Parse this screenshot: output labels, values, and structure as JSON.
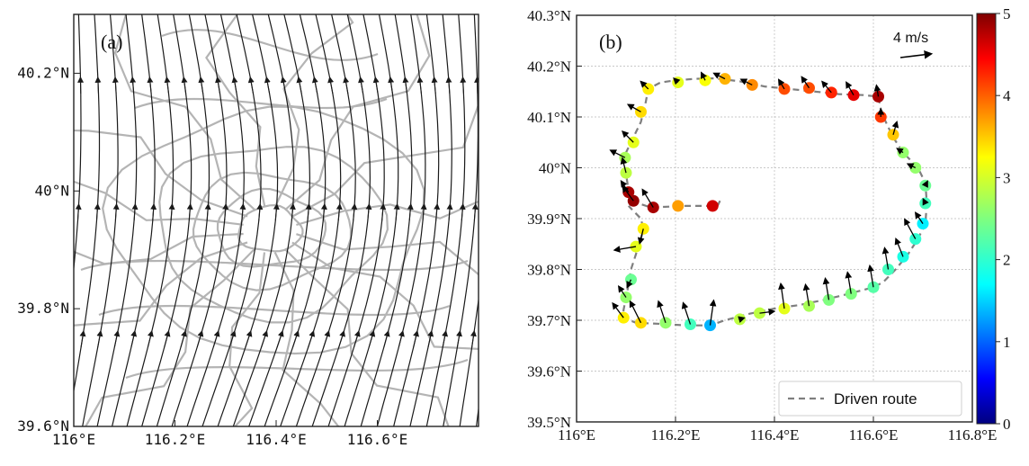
{
  "colors": {
    "streamline": "#1a1a1a",
    "road": "#b4b4b4",
    "route": "#7f7f7f",
    "grid": "#c8c8c8",
    "colormap": [
      "#00007f",
      "#0000ff",
      "#007fff",
      "#00ffff",
      "#7fff7f",
      "#ffff00",
      "#ff7f00",
      "#ff0000",
      "#7f0000"
    ]
  },
  "panel_a": {
    "label": "(a)",
    "xlim": [
      116.0,
      116.8
    ],
    "ylim": [
      39.6,
      40.3
    ],
    "xticks": [
      116.0,
      116.2,
      116.4,
      116.6
    ],
    "yticks": [
      39.6,
      39.8,
      40.0,
      40.2
    ],
    "xtick_labels": [
      "116°E",
      "116.2°E",
      "116.4°E",
      "116.6°E"
    ],
    "ytick_labels": [
      "39.6°N",
      "39.8°N",
      "40°N",
      "40.2°N"
    ],
    "streamline_count": 29
  },
  "chart_data": [
    {
      "type": "streamline",
      "xlim": [
        116.0,
        116.8
      ],
      "ylim": [
        39.6,
        40.3
      ],
      "description_labels": [
        "(a)"
      ]
    },
    {
      "type": "scatter",
      "label": "(b)",
      "xlim": [
        116.0,
        116.8
      ],
      "ylim": [
        39.5,
        40.3
      ],
      "xticks": [
        116.0,
        116.2,
        116.4,
        116.6,
        116.8
      ],
      "yticks": [
        39.5,
        39.6,
        39.7,
        39.8,
        39.9,
        40.0,
        40.1,
        40.2,
        40.3
      ],
      "xtick_labels": [
        "116°E",
        "116.2°E",
        "116.4°E",
        "116.6°E",
        "116.8°E"
      ],
      "ytick_labels": [
        "39.5°N",
        "39.6°N",
        "39.7°N",
        "39.8°N",
        "39.9°N",
        "40°N",
        "40.1°N",
        "40.2°N",
        "40.3°N"
      ],
      "grid": true,
      "legend": {
        "label": "Driven route",
        "placement": "bottom-right"
      },
      "scale_label": "4 m/s",
      "scale_speed": 4,
      "colorbar": {
        "min": 0,
        "max": 5,
        "ticks": [
          0,
          1,
          2,
          3,
          4,
          5
        ],
        "tick_labels": [
          "0",
          "1",
          "2",
          "3",
          "4",
          "5"
        ]
      },
      "route": [
        [
          116.29,
          39.935
        ],
        [
          116.285,
          39.925
        ],
        [
          116.22,
          39.925
        ],
        [
          116.15,
          39.922
        ],
        [
          116.125,
          39.93
        ],
        [
          116.112,
          39.94
        ],
        [
          116.105,
          39.955
        ],
        [
          116.102,
          39.975
        ],
        [
          116.098,
          40.0
        ],
        [
          116.095,
          40.02
        ],
        [
          116.1,
          40.03
        ],
        [
          116.11,
          40.05
        ],
        [
          116.12,
          40.07
        ],
        [
          116.13,
          40.09
        ],
        [
          116.135,
          40.11
        ],
        [
          116.14,
          40.13
        ],
        [
          116.145,
          40.155
        ],
        [
          116.17,
          40.168
        ],
        [
          116.2,
          40.172
        ],
        [
          116.24,
          40.175
        ],
        [
          116.28,
          40.176
        ],
        [
          116.33,
          40.17
        ],
        [
          116.38,
          40.16
        ],
        [
          116.43,
          40.155
        ],
        [
          116.48,
          40.15
        ],
        [
          116.53,
          40.145
        ],
        [
          116.58,
          40.143
        ],
        [
          116.61,
          40.14
        ],
        [
          116.615,
          40.115
        ],
        [
          116.625,
          40.09
        ],
        [
          116.64,
          40.06
        ],
        [
          116.66,
          40.03
        ],
        [
          116.69,
          40.0
        ],
        [
          116.705,
          39.97
        ],
        [
          116.708,
          39.93
        ],
        [
          116.705,
          39.89
        ],
        [
          116.69,
          39.86
        ],
        [
          116.67,
          39.83
        ],
        [
          116.645,
          39.8
        ],
        [
          116.62,
          39.775
        ],
        [
          116.6,
          39.765
        ],
        [
          116.55,
          39.752
        ],
        [
          116.5,
          39.74
        ],
        [
          116.45,
          39.73
        ],
        [
          116.4,
          39.723
        ],
        [
          116.35,
          39.713
        ],
        [
          116.3,
          39.7
        ],
        [
          116.27,
          39.69
        ],
        [
          116.22,
          39.69
        ],
        [
          116.17,
          39.693
        ],
        [
          116.12,
          39.695
        ],
        [
          116.095,
          39.705
        ],
        [
          116.095,
          39.72
        ],
        [
          116.1,
          39.745
        ],
        [
          116.105,
          39.77
        ],
        [
          116.11,
          39.8
        ],
        [
          116.12,
          39.83
        ],
        [
          116.13,
          39.86
        ],
        [
          116.135,
          39.88
        ],
        [
          116.13,
          39.9
        ],
        [
          116.115,
          39.915
        ],
        [
          116.105,
          39.925
        ]
      ],
      "points": [
        {
          "lon": 116.275,
          "lat": 39.925,
          "speed": 4.6,
          "u": 0,
          "v": 0
        },
        {
          "lon": 116.205,
          "lat": 39.925,
          "speed": 3.6,
          "u": 0,
          "v": 0
        },
        {
          "lon": 116.155,
          "lat": 39.922,
          "speed": 4.8,
          "u": -0.3,
          "v": 0.5
        },
        {
          "lon": 116.115,
          "lat": 39.935,
          "speed": 4.9,
          "u": -0.3,
          "v": 0.4
        },
        {
          "lon": 116.105,
          "lat": 39.952,
          "speed": 4.8,
          "u": -0.2,
          "v": 0.3
        },
        {
          "lon": 116.135,
          "lat": 39.88,
          "speed": 3.2,
          "u": -0.1,
          "v": -0.4
        },
        {
          "lon": 116.12,
          "lat": 39.845,
          "speed": 3.0,
          "u": -0.6,
          "v": -0.1
        },
        {
          "lon": 116.11,
          "lat": 39.78,
          "speed": 2.4,
          "u": -0.1,
          "v": -0.2
        },
        {
          "lon": 116.1,
          "lat": 39.745,
          "speed": 2.6,
          "u": -0.2,
          "v": 0.3
        },
        {
          "lon": 116.095,
          "lat": 39.705,
          "speed": 3.2,
          "u": -0.3,
          "v": 0.4
        },
        {
          "lon": 116.13,
          "lat": 39.695,
          "speed": 3.3,
          "u": -0.3,
          "v": 0.6
        },
        {
          "lon": 116.18,
          "lat": 39.695,
          "speed": 2.6,
          "u": -0.2,
          "v": 0.6
        },
        {
          "lon": 116.23,
          "lat": 39.692,
          "speed": 2.2,
          "u": -0.2,
          "v": 0.6
        },
        {
          "lon": 116.27,
          "lat": 39.69,
          "speed": 1.5,
          "u": 0.1,
          "v": 0.7
        },
        {
          "lon": 116.33,
          "lat": 39.702,
          "speed": 2.8,
          "u": 0.1,
          "v": 0.03
        },
        {
          "lon": 116.37,
          "lat": 39.714,
          "speed": 2.8,
          "u": 0.4,
          "v": 0.05
        },
        {
          "lon": 116.42,
          "lat": 39.723,
          "speed": 3.0,
          "u": -0.1,
          "v": 0.7
        },
        {
          "lon": 116.47,
          "lat": 39.728,
          "speed": 2.7,
          "u": -0.1,
          "v": 0.6
        },
        {
          "lon": 116.51,
          "lat": 39.74,
          "speed": 2.5,
          "u": -0.1,
          "v": 0.6
        },
        {
          "lon": 116.555,
          "lat": 39.752,
          "speed": 2.5,
          "u": -0.1,
          "v": 0.6
        },
        {
          "lon": 116.6,
          "lat": 39.765,
          "speed": 2.3,
          "u": -0.1,
          "v": 0.6
        },
        {
          "lon": 116.63,
          "lat": 39.8,
          "speed": 2.2,
          "u": -0.1,
          "v": 0.6
        },
        {
          "lon": 116.66,
          "lat": 39.825,
          "speed": 2.0,
          "u": -0.2,
          "v": 0.5
        },
        {
          "lon": 116.685,
          "lat": 39.86,
          "speed": 2.1,
          "u": -0.3,
          "v": 0.55
        },
        {
          "lon": 116.7,
          "lat": 39.89,
          "speed": 1.8,
          "u": -0.2,
          "v": 0.3
        },
        {
          "lon": 116.705,
          "lat": 39.93,
          "speed": 2.2,
          "u": -0.05,
          "v": 0.1
        },
        {
          "lon": 116.705,
          "lat": 39.965,
          "speed": 2.4,
          "u": 0.05,
          "v": 0.1
        },
        {
          "lon": 116.685,
          "lat": 40.0,
          "speed": 2.6,
          "u": -0.2,
          "v": 0.1
        },
        {
          "lon": 116.66,
          "lat": 40.03,
          "speed": 2.6,
          "u": -0.15,
          "v": 0.1
        },
        {
          "lon": 116.64,
          "lat": 40.065,
          "speed": 3.4,
          "u": 0.1,
          "v": 0.35
        },
        {
          "lon": 116.615,
          "lat": 40.1,
          "speed": 4.1,
          "u": 0.0,
          "v": 0.2
        },
        {
          "lon": 116.61,
          "lat": 40.14,
          "speed": 4.8,
          "u": -0.05,
          "v": 0.3
        },
        {
          "lon": 116.56,
          "lat": 40.143,
          "speed": 4.5,
          "u": -0.2,
          "v": 0.35
        },
        {
          "lon": 116.515,
          "lat": 40.148,
          "speed": 4.2,
          "u": -0.25,
          "v": 0.3
        },
        {
          "lon": 116.47,
          "lat": 40.157,
          "speed": 4.0,
          "u": -0.2,
          "v": 0.3
        },
        {
          "lon": 116.42,
          "lat": 40.155,
          "speed": 4.0,
          "u": -0.15,
          "v": 0.25
        },
        {
          "lon": 116.355,
          "lat": 40.163,
          "speed": 3.7,
          "u": -0.3,
          "v": 0.15
        },
        {
          "lon": 116.3,
          "lat": 40.175,
          "speed": 3.5,
          "u": -0.3,
          "v": 0.15
        },
        {
          "lon": 116.26,
          "lat": 40.172,
          "speed": 3.1,
          "u": -0.1,
          "v": 0.2
        },
        {
          "lon": 116.205,
          "lat": 40.168,
          "speed": 3.0,
          "u": -0.1,
          "v": 0.1
        },
        {
          "lon": 116.145,
          "lat": 40.155,
          "speed": 3.2,
          "u": -0.2,
          "v": 0.2
        },
        {
          "lon": 116.13,
          "lat": 40.11,
          "speed": 3.3,
          "u": -0.35,
          "v": 0.2
        },
        {
          "lon": 116.115,
          "lat": 40.05,
          "speed": 3.0,
          "u": -0.3,
          "v": 0.3
        },
        {
          "lon": 116.098,
          "lat": 40.02,
          "speed": 2.7,
          "u": -0.4,
          "v": 0.2
        },
        {
          "lon": 116.1,
          "lat": 39.99,
          "speed": 2.8,
          "u": -0.1,
          "v": 0.4
        }
      ]
    }
  ]
}
